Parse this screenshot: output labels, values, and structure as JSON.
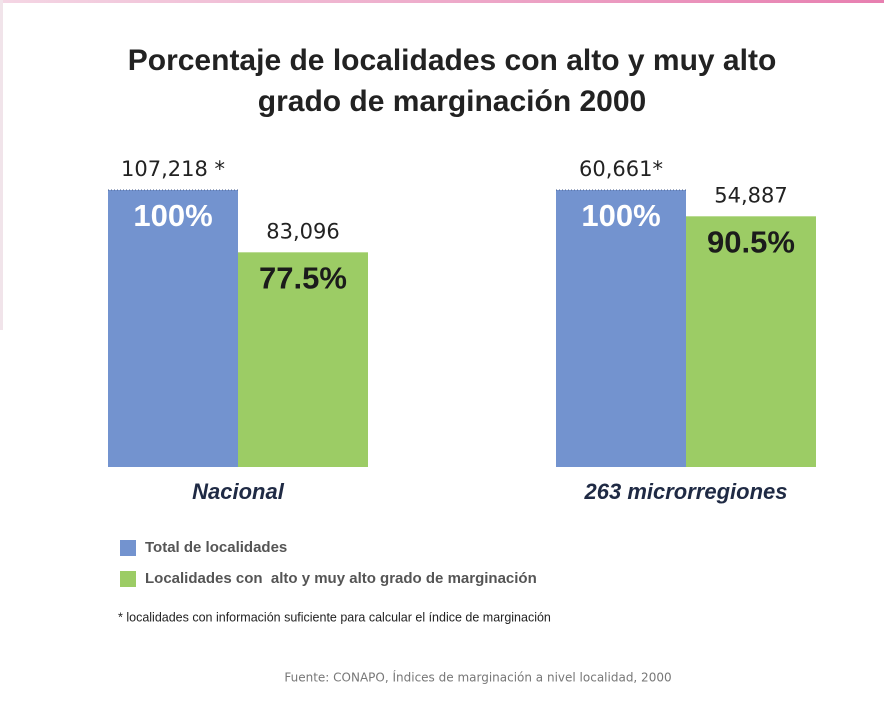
{
  "chart_data": {
    "type": "bar",
    "title": [
      "Porcentaje de localidades con alto y muy alto",
      "grado de marginación 2000"
    ],
    "categories": [
      "Nacional",
      "263 microrregiones"
    ],
    "series": [
      {
        "name": "Total de localidades",
        "color": "#7393cf",
        "values": [
          100,
          100
        ],
        "value_labels": [
          "100%",
          "100%"
        ],
        "count_labels": [
          "107,218 *",
          "60,661*"
        ]
      },
      {
        "name": "Localidades con  alto y muy alto grado de marginación",
        "color": "#9ccc65",
        "values": [
          77.5,
          90.5
        ],
        "value_labels": [
          "77.5%",
          "90.5%"
        ],
        "count_labels": [
          "83,096",
          "54,887"
        ]
      }
    ],
    "footnote": "* localidades con información suficiente para calcular el índice de marginación",
    "source": "Fuente: CONAPO, Índices de marginación a nivel localidad, 2000"
  }
}
